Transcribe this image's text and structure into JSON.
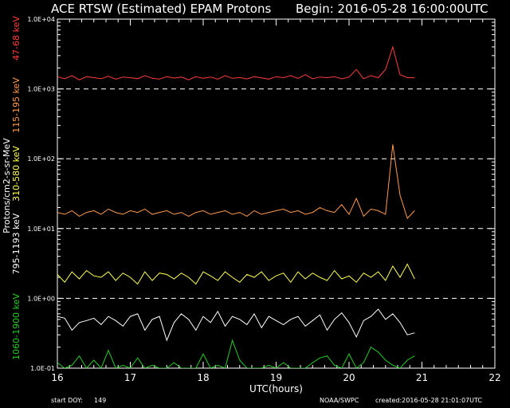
{
  "title": {
    "text": "ACE RTSW (Estimated) EPAM Protons",
    "begin": "Begin: 2016-05-28 16:00:00UTC"
  },
  "footer": {
    "start_doy_label": "start DOY:",
    "start_doy": "149",
    "source": "NOAA/SWPC",
    "created": "created:2016-05-28 21:01:07UTC"
  },
  "colors": {
    "background": "#000000",
    "axes": "#ffffff",
    "ch1": "#ff3b3b",
    "ch2": "#ff9a4a",
    "ch3": "#ffff50",
    "ch4": "#ffffff",
    "ch5": "#22cc22"
  },
  "chart_data": {
    "type": "line",
    "title": "ACE RTSW (Estimated) EPAM Protons",
    "xlabel": "UTC(hours)",
    "ylabel": "Protons/cm2-s-sr-MeV",
    "xlim": [
      16,
      22
    ],
    "ylim": [
      0.1,
      10000
    ],
    "yscale": "log",
    "x_ticks": [
      "16",
      "17",
      "18",
      "19",
      "20",
      "21",
      "22"
    ],
    "y_ticks": [
      "1.0E-01",
      "1.0E+00",
      "1.0E+01",
      "1.0E+02",
      "1.0E+03",
      "1.0E+04"
    ],
    "reference_lines_at": [
      1000,
      100,
      10,
      1
    ],
    "legend": "left-axis",
    "x": [
      16.0,
      16.1,
      16.2,
      16.3,
      16.4,
      16.5,
      16.6,
      16.7,
      16.8,
      16.9,
      17.0,
      17.1,
      17.2,
      17.3,
      17.4,
      17.5,
      17.6,
      17.7,
      17.8,
      17.9,
      18.0,
      18.1,
      18.2,
      18.3,
      18.4,
      18.5,
      18.6,
      18.7,
      18.8,
      18.9,
      19.0,
      19.1,
      19.2,
      19.3,
      19.4,
      19.5,
      19.6,
      19.7,
      19.8,
      19.9,
      20.0,
      20.1,
      20.2,
      20.3,
      20.4,
      20.5,
      20.6,
      20.7,
      20.8,
      20.9
    ],
    "series": [
      {
        "name": "47-68 keV",
        "color": "#ff3b3b",
        "values": [
          1500,
          1400,
          1550,
          1350,
          1500,
          1450,
          1400,
          1520,
          1380,
          1480,
          1450,
          1400,
          1550,
          1420,
          1380,
          1500,
          1430,
          1480,
          1350,
          1500,
          1420,
          1480,
          1380,
          1550,
          1420,
          1460,
          1390,
          1500,
          1440,
          1380,
          1500,
          1450,
          1550,
          1420,
          1600,
          1400,
          1480,
          1450,
          1500,
          1400,
          1480,
          1900,
          1400,
          1550,
          1450,
          1900,
          4000,
          1600,
          1450,
          1450
        ]
      },
      {
        "name": "115-195 keV",
        "color": "#ff9a4a",
        "values": [
          17,
          16,
          18,
          15,
          17,
          18,
          16,
          19,
          17,
          16,
          18,
          17,
          19,
          16,
          17,
          18,
          16,
          17,
          15,
          17,
          18,
          16,
          17,
          18,
          16,
          17,
          15,
          18,
          16,
          17,
          18,
          19,
          17,
          18,
          16,
          17,
          20,
          18,
          17,
          22,
          16,
          27,
          15,
          19,
          18,
          16,
          160,
          30,
          14,
          18
        ]
      },
      {
        "name": "310-580 keV",
        "color": "#ffff50",
        "values": [
          2.2,
          1.7,
          2.4,
          1.9,
          2.5,
          2.1,
          2.0,
          2.4,
          1.8,
          2.3,
          2.0,
          1.6,
          2.4,
          1.8,
          2.3,
          2.2,
          1.9,
          2.3,
          2.0,
          1.6,
          2.4,
          2.1,
          1.8,
          2.4,
          2.0,
          1.7,
          2.2,
          2.0,
          2.4,
          1.8,
          2.1,
          2.3,
          1.7,
          2.4,
          1.9,
          2.3,
          2.0,
          1.8,
          2.5,
          1.9,
          2.1,
          1.7,
          2.3,
          2.0,
          2.4,
          1.8,
          2.9,
          2.0,
          3.1,
          1.9
        ]
      },
      {
        "name": "795-1193 keV",
        "color": "#ffffff",
        "values": [
          0.55,
          0.52,
          0.35,
          0.45,
          0.48,
          0.52,
          0.42,
          0.55,
          0.48,
          0.4,
          0.55,
          0.6,
          0.35,
          0.5,
          0.55,
          0.25,
          0.45,
          0.6,
          0.5,
          0.35,
          0.55,
          0.45,
          0.65,
          0.4,
          0.55,
          0.5,
          0.42,
          0.6,
          0.38,
          0.55,
          0.48,
          0.42,
          0.5,
          0.55,
          0.4,
          0.48,
          0.58,
          0.35,
          0.5,
          0.62,
          0.45,
          0.28,
          0.48,
          0.55,
          0.7,
          0.5,
          0.6,
          0.45,
          0.3,
          0.32
        ]
      },
      {
        "name": "1060-1900 keV",
        "color": "#22cc22",
        "values": [
          0.12,
          0.1,
          0.11,
          0.15,
          0.1,
          0.13,
          0.1,
          0.18,
          0.1,
          0.11,
          0.1,
          0.14,
          0.1,
          0.11,
          0.1,
          0.1,
          0.12,
          0.1,
          0.1,
          0.1,
          0.16,
          0.1,
          0.11,
          0.1,
          0.25,
          0.13,
          0.1,
          0.1,
          0.1,
          0.11,
          0.1,
          0.12,
          0.1,
          0.1,
          0.1,
          0.12,
          0.14,
          0.15,
          0.11,
          0.1,
          0.16,
          0.1,
          0.12,
          0.2,
          0.17,
          0.13,
          0.11,
          0.1,
          0.13,
          0.15
        ]
      }
    ]
  }
}
